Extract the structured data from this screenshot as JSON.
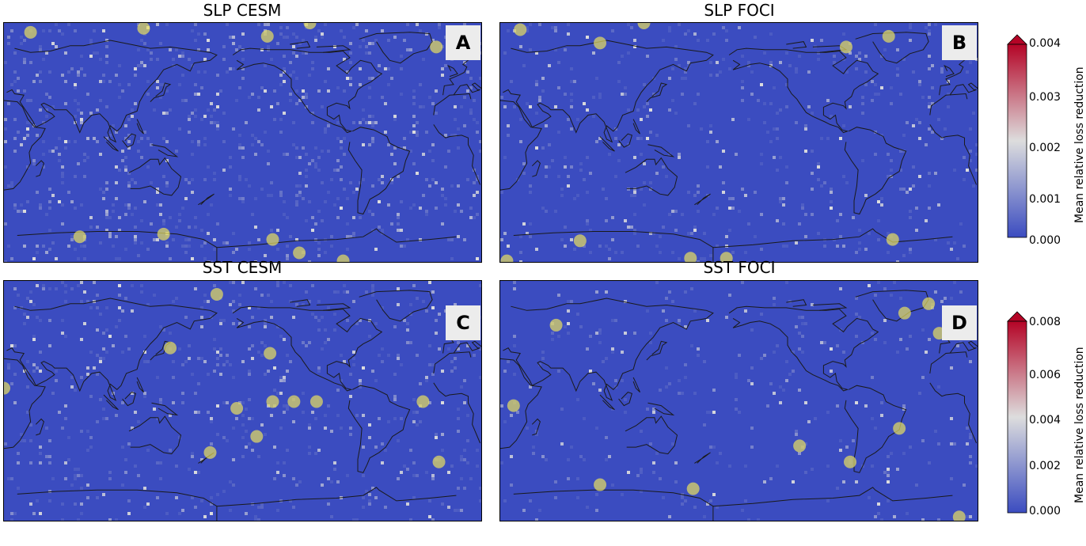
{
  "panels": [
    {
      "id": "A",
      "title": "SLP CESM"
    },
    {
      "id": "B",
      "title": "SLP FOCI"
    },
    {
      "id": "C",
      "title": "SST CESM"
    },
    {
      "id": "D",
      "title": "SST FOCI"
    }
  ],
  "colorbars": [
    {
      "label": "Mean relative loss reduction",
      "ticks": [
        "0.000",
        "0.001",
        "0.002",
        "0.003",
        "0.004"
      ],
      "vmin": 0,
      "vmax": 0.004
    },
    {
      "label": "Mean relative loss reduction",
      "ticks": [
        "0.000",
        "0.002",
        "0.004",
        "0.006",
        "0.008"
      ],
      "vmin": 0,
      "vmax": 0.008
    }
  ],
  "colors": {
    "ocean_low": "#3b4cc0",
    "mid": "#dddddd",
    "high": "#b40426",
    "marker": "#e8e060",
    "coast": "#1a1a1a"
  },
  "chart_data": [
    {
      "type": "heatmap",
      "title": "SLP CESM",
      "panel_label": "A",
      "colorbar_range": [
        0,
        0.004
      ],
      "markers_lonlat": [
        [
          -142,
          80
        ],
        [
          -110,
          90
        ],
        [
          -15,
          72
        ],
        [
          125,
          86
        ],
        [
          40,
          83
        ],
        [
          -138,
          -72
        ],
        [
          -85,
          -88
        ],
        [
          -118,
          -82
        ],
        [
          77,
          -70
        ],
        [
          140,
          -68
        ]
      ]
    },
    {
      "type": "heatmap",
      "title": "SLP FOCI",
      "panel_label": "B",
      "colorbar_range": [
        0,
        0.004
      ],
      "markers_lonlat": [
        [
          -80,
          72
        ],
        [
          -48,
          80
        ],
        [
          35,
          85
        ],
        [
          128,
          90
        ],
        [
          95,
          75
        ],
        [
          -170,
          -86
        ],
        [
          -45,
          -72
        ],
        [
          25,
          -88
        ],
        [
          80,
          -73
        ],
        [
          163,
          -86
        ]
      ]
    },
    {
      "type": "heatmap",
      "title": "SST CESM",
      "panel_label": "C",
      "colorbar_range": [
        0,
        0.008
      ],
      "markers_lonlat": [
        [
          -180,
          80
        ],
        [
          -140,
          36
        ],
        [
          145,
          40
        ],
        [
          -150,
          -26
        ],
        [
          175,
          -38
        ],
        [
          -25,
          0
        ],
        [
          -13,
          -45
        ],
        [
          20,
          10
        ],
        [
          -165,
          -5
        ],
        [
          -105,
          0
        ],
        [
          -138,
          0
        ],
        [
          -122,
          0
        ]
      ]
    },
    {
      "type": "heatmap",
      "title": "SST FOCI",
      "panel_label": "D",
      "colorbar_range": [
        0,
        0.008
      ],
      "markers_lonlat": [
        [
          -18,
          73
        ],
        [
          -10,
          51
        ],
        [
          62,
          57
        ],
        [
          -36,
          66
        ],
        [
          -77,
          -45
        ],
        [
          -115,
          -33
        ],
        [
          -40,
          -20
        ],
        [
          30,
          -3
        ],
        [
          95,
          -62
        ],
        [
          165,
          -65
        ],
        [
          5,
          -86
        ]
      ]
    }
  ]
}
